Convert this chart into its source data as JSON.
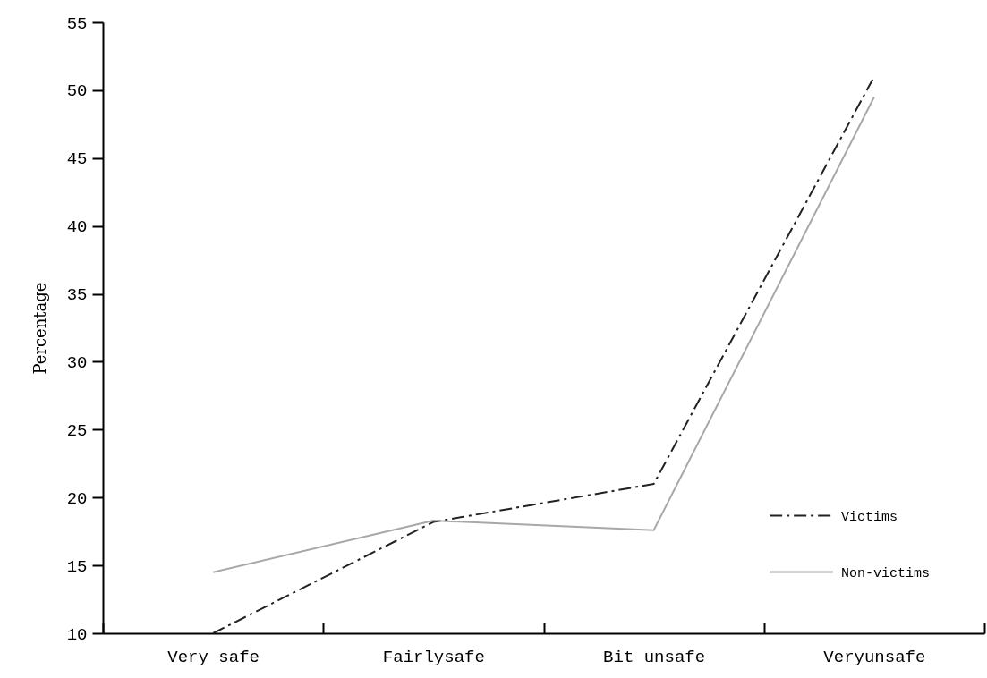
{
  "chart_data": {
    "type": "line",
    "ylabel": "Percentage",
    "categories": [
      "Very safe",
      "Fairlysafe",
      "Bit unsafe",
      "Veryunsafe"
    ],
    "series": [
      {
        "name": "Victims",
        "color": "#222222",
        "line_style": "dashed",
        "values": [
          10,
          18.2,
          21,
          51
        ]
      },
      {
        "name": "Non-victims",
        "color": "#a8a8a8",
        "line_style": "solid",
        "values": [
          14.5,
          18.3,
          17.6,
          49.5
        ]
      }
    ],
    "ylim": [
      10,
      55
    ],
    "yticks": [
      10,
      15,
      20,
      25,
      30,
      35,
      40,
      45,
      50,
      55
    ],
    "grid": false,
    "legend": "bottom right",
    "marker": "none"
  }
}
